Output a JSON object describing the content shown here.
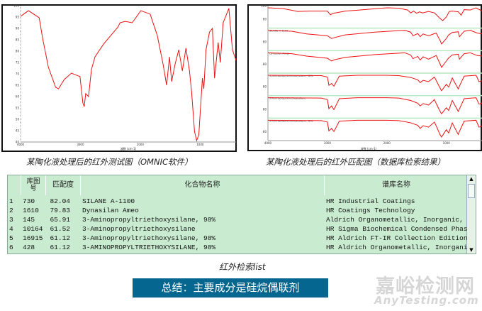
{
  "chart_data": [
    {
      "type": "line",
      "title": "",
      "xlabel": "波数 (cm-1)",
      "ylabel": "",
      "xlim": [
        4000,
        400
      ],
      "ylim": [
        40,
        100
      ],
      "x_ticks": [
        "4000",
        "3000",
        "2000",
        "1000"
      ],
      "y_ticks": [
        "100",
        "95",
        "90",
        "85",
        "80",
        "75",
        "70",
        "65",
        "60",
        "55",
        "50",
        "45",
        "40"
      ],
      "color": "#ee1111",
      "series": [
        {
          "x": [
            4000,
            3868,
            3689,
            3629,
            3534,
            3414,
            3366,
            3270,
            3151,
            3007,
            2959,
            2936,
            2912,
            2864,
            2816,
            2756,
            2613,
            2373,
            2338,
            2254,
            2134,
            1991,
            1835,
            1716,
            1620,
            1560,
            1512,
            1476,
            1417,
            1357,
            1297,
            1237,
            1178,
            1142,
            1094,
            1058,
            1022,
            962,
            938,
            902,
            843,
            795,
            759,
            699,
            663,
            615,
            520,
            460,
            400
          ],
          "y": [
            95.3,
            97.8,
            94.7,
            85.3,
            72.8,
            64.1,
            63.4,
            67.5,
            70.3,
            68.8,
            57.2,
            55.6,
            61.3,
            60,
            71.9,
            77.5,
            83.1,
            90.6,
            92.5,
            93.1,
            92.5,
            97.8,
            96.3,
            86.9,
            74.4,
            65,
            77.5,
            66.6,
            74.4,
            80.6,
            71.3,
            81.3,
            71.3,
            61.9,
            44.7,
            40.6,
            43.1,
            68.1,
            63.4,
            80.6,
            88.4,
            90,
            68.1,
            83.8,
            75,
            92.5,
            98.8,
            80.6,
            75.9
          ]
        }
      ]
    },
    {
      "type": "line",
      "title": "",
      "xlabel": "波数 (cm-1)",
      "xlim": [
        4000,
        400
      ],
      "x_ticks": [
        "4000",
        "3000",
        "2000",
        "1000"
      ],
      "panel_y_tick": "80",
      "top_y_tick": "100",
      "color": "#ee1111",
      "panels": [
        {
          "label": "",
          "x": [
            4000,
            3750,
            3500,
            3300,
            3000,
            2950,
            2900,
            2700,
            2300,
            2000,
            1800,
            1650,
            1600,
            1550,
            1500,
            1450,
            1400,
            1300,
            1200,
            1100,
            1060,
            1000,
            950,
            900,
            800,
            750,
            700,
            600,
            500,
            400
          ],
          "y": [
            100,
            96,
            80,
            82,
            82,
            62,
            70,
            82,
            92,
            100,
            98,
            88,
            72,
            82,
            70,
            78,
            72,
            80,
            72,
            40,
            30,
            50,
            80,
            82,
            78,
            60,
            90,
            88,
            100,
            82
          ]
        },
        {
          "label": "SILANE A-1100",
          "x": [
            4000,
            3600,
            3350,
            3000,
            2930,
            2880,
            2700,
            2200,
            1700,
            1600,
            1560,
            1480,
            1440,
            1390,
            1300,
            1170,
            1100,
            1080,
            1000,
            960,
            900,
            800,
            780,
            700,
            600,
            480,
            400
          ],
          "y": [
            100,
            95,
            80,
            70,
            55,
            60,
            75,
            90,
            100,
            90,
            70,
            82,
            65,
            80,
            70,
            85,
            40,
            25,
            55,
            75,
            88,
            92,
            65,
            95,
            100,
            85,
            80
          ]
        },
        {
          "label": "Dynasilan Ameo",
          "x": [
            4000,
            3600,
            3350,
            3000,
            2930,
            2880,
            2700,
            2200,
            1700,
            1600,
            1560,
            1480,
            1440,
            1390,
            1300,
            1170,
            1100,
            1080,
            1000,
            960,
            900,
            800,
            780,
            700,
            600,
            480,
            400
          ],
          "y": [
            100,
            95,
            82,
            70,
            55,
            62,
            75,
            90,
            100,
            88,
            68,
            80,
            60,
            78,
            65,
            85,
            35,
            20,
            55,
            72,
            88,
            92,
            65,
            95,
            100,
            85,
            82
          ]
        },
        {
          "label": "3-Aminopropyltriethoxysilane, 98%",
          "x": [
            4000,
            3100,
            3000,
            2975,
            2930,
            2890,
            2800,
            2500,
            2000,
            1800,
            1600,
            1480,
            1440,
            1390,
            1300,
            1200,
            1165,
            1105,
            1080,
            1000,
            960,
            900,
            800,
            780,
            700,
            500,
            450,
            400
          ],
          "y": [
            100,
            98,
            90,
            45,
            55,
            40,
            95,
            100,
            100,
            98,
            88,
            75,
            60,
            72,
            65,
            90,
            68,
            30,
            15,
            50,
            35,
            85,
            25,
            40,
            95,
            100,
            65,
            70
          ]
        },
        {
          "label": "3-Aminopropyltriethoxysilane",
          "x": [
            4000,
            3100,
            3000,
            2975,
            2930,
            2890,
            2800,
            2500,
            2000,
            1800,
            1600,
            1480,
            1440,
            1390,
            1300,
            1200,
            1165,
            1105,
            1080,
            1000,
            960,
            900,
            800,
            780,
            700,
            500,
            450,
            400
          ],
          "y": [
            100,
            98,
            90,
            40,
            55,
            35,
            95,
            100,
            100,
            98,
            85,
            70,
            55,
            68,
            60,
            90,
            65,
            25,
            12,
            45,
            30,
            85,
            25,
            38,
            95,
            100,
            65,
            72
          ]
        },
        {
          "label": "3-Aminopropyltriethoxysilane, 98%",
          "x": [
            4000,
            3100,
            3000,
            2975,
            2930,
            2890,
            2800,
            2500,
            2000,
            1800,
            1600,
            1480,
            1440,
            1390,
            1300,
            1200,
            1165,
            1105,
            1080,
            1000,
            960,
            900,
            800,
            780,
            700,
            500,
            450,
            400
          ],
          "y": [
            100,
            98,
            90,
            42,
            55,
            38,
            95,
            100,
            100,
            98,
            86,
            72,
            55,
            70,
            62,
            90,
            65,
            20,
            8,
            48,
            30,
            85,
            22,
            38,
            95,
            100,
            62,
            68
          ]
        }
      ]
    }
  ],
  "captions": {
    "left": "某陶化液处理后的红外测试图（OMNIC软件）",
    "right": "某陶化液处理后的红外匹配图（数据库检索结果）",
    "list": "红外检索list"
  },
  "table": {
    "headers": [
      "",
      "库图号",
      "匹配度",
      "化合物名称",
      "谱库名称"
    ],
    "rows": [
      [
        "1",
        "730",
        "82.04",
        "SILANE A-1100",
        "HR Industrial Coatings"
      ],
      [
        "2",
        "1610",
        "79.83",
        "Dynasilan Ameo",
        "HR Coatings Technology"
      ],
      [
        "3",
        "145",
        "65.91",
        "3-Aminopropyltriethoxysilane, 98%",
        "Aldrich Organometallic, Inorganic, E"
      ],
      [
        "4",
        "10164",
        "61.52",
        "3-Aminopropyltriethoxysilane",
        "HR Sigma Biochemical Condensed Phase"
      ],
      [
        "5",
        "16915",
        "61.12",
        "3-Aminopropyltriethoxysilane, 98%",
        "HR Aldrich FT-IR Collection Edition"
      ],
      [
        "6",
        "428",
        "61.12",
        "3-AMINOPROPYLTRIETHOXYSILANE, 98%",
        "HR Aldrich Organometallic, Inorganic"
      ]
    ]
  },
  "banner": "总结：主要成分是硅烷偶联剂",
  "watermark": {
    "cn": "嘉峪检测网",
    "en": "AnyTesting.com"
  }
}
